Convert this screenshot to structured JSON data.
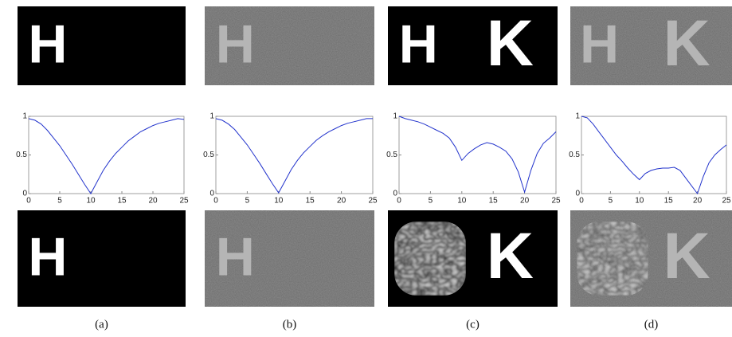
{
  "panels": [
    {
      "top_letters": [
        "H"
      ],
      "bottom_letters": [
        "H"
      ],
      "noisy": false,
      "blur": false,
      "caption": "(a)"
    },
    {
      "top_letters": [
        "H"
      ],
      "bottom_letters": [
        "H"
      ],
      "noisy": true,
      "blur": false,
      "caption": "(b)"
    },
    {
      "top_letters": [
        "H",
        "K"
      ],
      "bottom_letters": [
        "K"
      ],
      "noisy": false,
      "blur": true,
      "caption": "(c)"
    },
    {
      "top_letters": [
        "H",
        "K"
      ],
      "bottom_letters": [
        "K"
      ],
      "noisy": true,
      "blur": true,
      "caption": "(d)"
    }
  ],
  "chart_data": [
    {
      "type": "line",
      "x": [
        0,
        1,
        2,
        3,
        4,
        5,
        6,
        7,
        8,
        9,
        10,
        11,
        12,
        13,
        14,
        15,
        16,
        17,
        18,
        19,
        20,
        21,
        22,
        23,
        24,
        25
      ],
      "series": [
        {
          "color": "#2233cc",
          "values": [
            0.97,
            0.95,
            0.9,
            0.82,
            0.72,
            0.62,
            0.5,
            0.38,
            0.25,
            0.12,
            0.0,
            0.15,
            0.3,
            0.42,
            0.52,
            0.6,
            0.68,
            0.74,
            0.8,
            0.84,
            0.88,
            0.91,
            0.93,
            0.95,
            0.97,
            0.96
          ]
        }
      ],
      "xlim": [
        0,
        25
      ],
      "ylim": [
        0,
        1
      ],
      "xticks": [
        0,
        5,
        10,
        15,
        20,
        25
      ],
      "yticks": [
        0,
        0.5,
        1
      ]
    },
    {
      "type": "line",
      "x": [
        0,
        1,
        2,
        3,
        4,
        5,
        6,
        7,
        8,
        9,
        10,
        11,
        12,
        13,
        14,
        15,
        16,
        17,
        18,
        19,
        20,
        21,
        22,
        23,
        24,
        25
      ],
      "series": [
        {
          "color": "#2233cc",
          "values": [
            0.97,
            0.95,
            0.9,
            0.83,
            0.73,
            0.63,
            0.51,
            0.39,
            0.26,
            0.13,
            0.01,
            0.16,
            0.31,
            0.43,
            0.53,
            0.61,
            0.69,
            0.75,
            0.8,
            0.84,
            0.88,
            0.91,
            0.93,
            0.95,
            0.97,
            0.97
          ]
        }
      ],
      "xlim": [
        0,
        25
      ],
      "ylim": [
        0,
        1
      ],
      "xticks": [
        0,
        5,
        10,
        15,
        20,
        25
      ],
      "yticks": [
        0,
        0.5,
        1
      ]
    },
    {
      "type": "line",
      "x": [
        0,
        1,
        2,
        3,
        4,
        5,
        6,
        7,
        8,
        9,
        10,
        11,
        12,
        13,
        14,
        15,
        16,
        17,
        18,
        19,
        20,
        21,
        22,
        23,
        24,
        25
      ],
      "series": [
        {
          "color": "#2233cc",
          "values": [
            1,
            0.97,
            0.95,
            0.93,
            0.9,
            0.86,
            0.82,
            0.78,
            0.72,
            0.6,
            0.43,
            0.52,
            0.58,
            0.63,
            0.66,
            0.64,
            0.6,
            0.55,
            0.45,
            0.28,
            0.02,
            0.3,
            0.52,
            0.65,
            0.72,
            0.8
          ]
        }
      ],
      "xlim": [
        0,
        25
      ],
      "ylim": [
        0,
        1
      ],
      "xticks": [
        0,
        5,
        10,
        15,
        20,
        25
      ],
      "yticks": [
        0,
        0.5,
        1
      ]
    },
    {
      "type": "line",
      "x": [
        0,
        1,
        2,
        3,
        4,
        5,
        6,
        7,
        8,
        9,
        10,
        11,
        12,
        13,
        14,
        15,
        16,
        17,
        18,
        19,
        20,
        21,
        22,
        23,
        24,
        25
      ],
      "series": [
        {
          "color": "#2233cc",
          "values": [
            1,
            0.98,
            0.9,
            0.8,
            0.7,
            0.6,
            0.5,
            0.42,
            0.33,
            0.25,
            0.18,
            0.26,
            0.3,
            0.32,
            0.33,
            0.33,
            0.34,
            0.3,
            0.2,
            0.1,
            0.0,
            0.22,
            0.4,
            0.5,
            0.57,
            0.63
          ]
        }
      ],
      "xlim": [
        0,
        25
      ],
      "ylim": [
        0,
        1
      ],
      "xticks": [
        0,
        5,
        10,
        15,
        20,
        25
      ],
      "yticks": [
        0,
        0.5,
        1
      ]
    }
  ]
}
